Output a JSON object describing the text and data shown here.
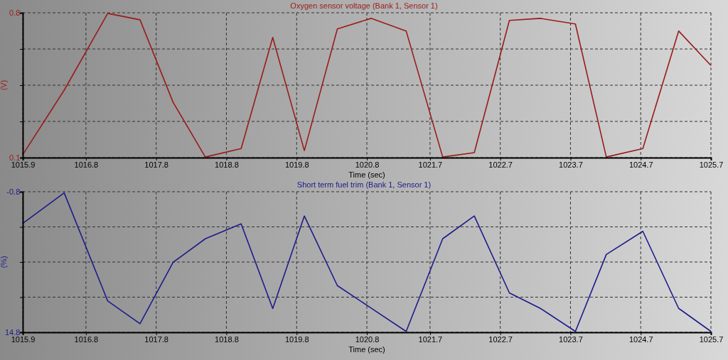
{
  "chart_data": [
    {
      "type": "line",
      "title": "Oxygen sensor voltage (Bank 1, Sensor 1)",
      "xlabel": "Time (sec)",
      "ylabel": "(V)",
      "grid": true,
      "marker": "none",
      "line_style": "solid",
      "xlim": [
        1015.9,
        1025.7
      ],
      "xticks": [
        1015.9,
        1016.8,
        1017.8,
        1018.8,
        1019.8,
        1020.8,
        1021.7,
        1022.7,
        1023.7,
        1024.7,
        1025.7
      ],
      "ylim": [
        0.1,
        0.8
      ],
      "yticks": [
        0.1,
        {
          "value": 0.275,
          "label": null
        },
        {
          "value": 0.45,
          "label": null
        },
        {
          "value": 0.625,
          "label": null
        },
        0.8
      ],
      "x": [
        1015.9,
        1016.49,
        1017.11,
        1017.57,
        1018.04,
        1018.5,
        1019.01,
        1019.46,
        1019.91,
        1020.38,
        1020.86,
        1021.36,
        1021.88,
        1022.33,
        1022.83,
        1023.27,
        1023.77,
        1024.21,
        1024.73,
        1025.24,
        1025.7
      ],
      "series": [
        {
          "color": "#9b1b1b",
          "values": [
            0.114,
            0.426,
            0.797,
            0.766,
            0.368,
            0.103,
            0.144,
            0.681,
            0.134,
            0.722,
            0.773,
            0.712,
            0.103,
            0.124,
            0.763,
            0.773,
            0.746,
            0.103,
            0.144,
            0.712,
            0.545
          ]
        }
      ]
    },
    {
      "type": "line",
      "title": "Short term fuel trim (Bank 1, Sensor 1)",
      "xlabel": "Time (sec)",
      "ylabel": "(%)",
      "grid": true,
      "marker": "none",
      "line_style": "solid",
      "xlim": [
        1015.9,
        1025.7
      ],
      "xticks": [
        1015.9,
        1016.8,
        1017.8,
        1018.8,
        1019.8,
        1020.8,
        1021.7,
        1022.7,
        1023.7,
        1024.7,
        1025.7
      ],
      "ylim": [
        14.8,
        -0.8
      ],
      "yticks": [
        14.8,
        {
          "value": 10.9,
          "label": null
        },
        {
          "value": 7,
          "label": null
        },
        {
          "value": 3.1,
          "label": null
        },
        -0.8
      ],
      "x": [
        1015.9,
        1016.49,
        1017.11,
        1017.57,
        1018.04,
        1018.5,
        1019.01,
        1019.46,
        1019.91,
        1020.38,
        1020.86,
        1021.36,
        1021.88,
        1022.33,
        1022.83,
        1023.27,
        1023.77,
        1024.21,
        1024.73,
        1025.24,
        1025.7
      ],
      "series": [
        {
          "color": "#1c1c8c",
          "values": [
            2.72,
            -0.67,
            11.33,
            13.84,
            7.04,
            4.42,
            2.76,
            12.16,
            1.89,
            9.62,
            12.11,
            14.7,
            4.42,
            1.89,
            10.43,
            12.14,
            14.7,
            6.16,
            3.59,
            12.14,
            14.7
          ]
        }
      ]
    }
  ]
}
